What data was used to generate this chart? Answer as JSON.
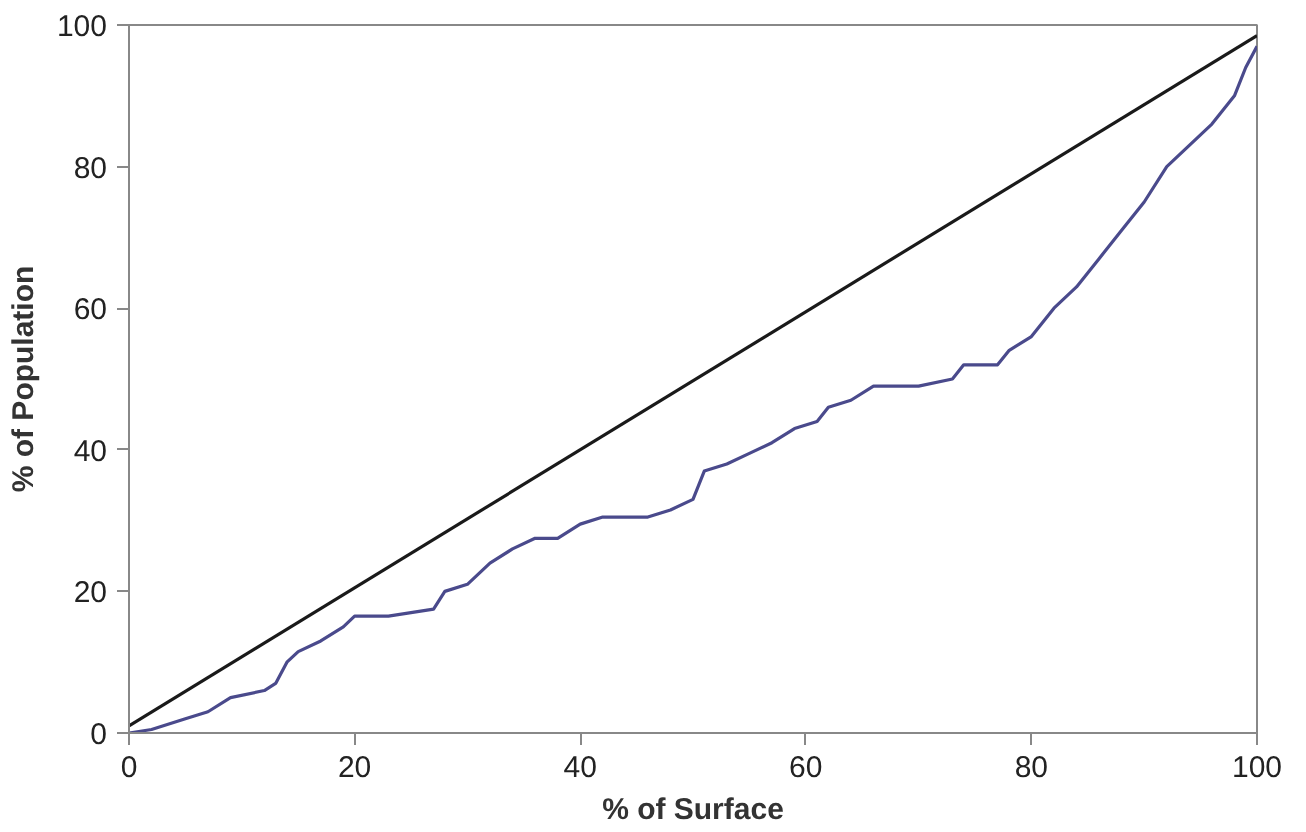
{
  "chart_data": {
    "type": "line",
    "xlabel": "% of Surface",
    "ylabel": "% of Population",
    "xlim": [
      0,
      100
    ],
    "ylim": [
      0,
      100
    ],
    "xticks": [
      0,
      20,
      40,
      60,
      80,
      100
    ],
    "yticks": [
      0,
      20,
      40,
      60,
      80,
      100
    ],
    "grid": false,
    "marker": "none",
    "line_style": "solid",
    "series": [
      {
        "color": "#1a1a1a",
        "x": [
          0,
          100
        ],
        "values": [
          1,
          98.5
        ]
      },
      {
        "color": "#4a4a8c",
        "x": [
          0,
          2,
          5,
          7,
          9,
          12,
          13,
          14,
          15,
          17,
          19,
          20,
          23,
          25,
          27,
          28,
          30,
          32,
          34,
          36,
          38,
          40,
          42,
          46,
          48,
          50,
          51,
          53,
          55,
          57,
          59,
          61,
          62,
          64,
          66,
          70,
          73,
          74,
          77,
          78,
          80,
          82,
          84,
          86,
          88,
          90,
          92,
          94,
          96,
          98,
          99,
          100
        ],
        "values": [
          0,
          0.5,
          2,
          3,
          5,
          6,
          7,
          10,
          11.5,
          13,
          15,
          16.5,
          16.5,
          17,
          17.5,
          20,
          21,
          24,
          26,
          27.5,
          27.5,
          29.5,
          30.5,
          30.5,
          31.5,
          33,
          37,
          38,
          39.5,
          41,
          43,
          44,
          46,
          47,
          49,
          49,
          50,
          52,
          52,
          54,
          56,
          60,
          63,
          67,
          71,
          75,
          80,
          83,
          86,
          90,
          94,
          97
        ]
      }
    ]
  }
}
